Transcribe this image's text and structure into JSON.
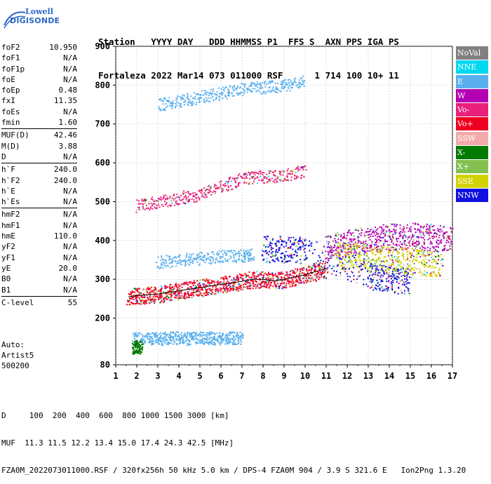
{
  "logo": {
    "line1": "Lowell",
    "line2": "DIGISONDE"
  },
  "header": {
    "line1": "Station   YYYY DAY   DDD HHMMSS P1  FFS S  AXN PPS IGA PS",
    "line2": "Fortaleza 2022 Mar14 073 011000 RSF      1 714 100 10+ 11"
  },
  "params": [
    {
      "group": [
        {
          "name": "foF2",
          "value": "10.950"
        },
        {
          "name": "foF1",
          "value": "N/A"
        },
        {
          "name": "foF1p",
          "value": "N/A"
        },
        {
          "name": "foE",
          "value": "N/A"
        },
        {
          "name": "foEp",
          "value": "0.48"
        },
        {
          "name": "fxI",
          "value": "11.35"
        },
        {
          "name": "foEs",
          "value": "N/A"
        },
        {
          "name": "fmin",
          "value": "1.60"
        }
      ]
    },
    {
      "group": [
        {
          "name": "MUF(D)",
          "value": "42.46"
        },
        {
          "name": "M(D)",
          "value": "3.88"
        },
        {
          "name": "D",
          "value": "N/A"
        }
      ]
    },
    {
      "group": [
        {
          "name": "h`F",
          "value": "240.0"
        },
        {
          "name": "h`F2",
          "value": "240.0"
        },
        {
          "name": "h`E",
          "value": "N/A"
        },
        {
          "name": "h`Es",
          "value": "N/A"
        }
      ]
    },
    {
      "group": [
        {
          "name": "hmF2",
          "value": "N/A"
        },
        {
          "name": "hmF1",
          "value": "N/A"
        },
        {
          "name": "hmE",
          "value": "110.0"
        },
        {
          "name": "yF2",
          "value": "N/A"
        },
        {
          "name": "yF1",
          "value": "N/A"
        },
        {
          "name": "yE",
          "value": "20.0"
        },
        {
          "name": "B0",
          "value": "N/A"
        },
        {
          "name": "B1",
          "value": "N/A"
        }
      ]
    },
    {
      "group": [
        {
          "name": "C-level",
          "value": "55"
        }
      ]
    }
  ],
  "auto": {
    "line1": "Auto:",
    "line2": "Artist5",
    "line3": "500200"
  },
  "legend": [
    {
      "label": "NoVal",
      "color": "#808080"
    },
    {
      "label": "NNE",
      "color": "#00d8f0"
    },
    {
      "label": "E",
      "color": "#5ab0ee"
    },
    {
      "label": "W",
      "color": "#b400b4"
    },
    {
      "label": "Vo-",
      "color": "#e8207c"
    },
    {
      "label": "Vo+",
      "color": "#f00020"
    },
    {
      "label": "SSW",
      "color": "#f4aaaa"
    },
    {
      "label": "X-",
      "color": "#007a00"
    },
    {
      "label": "X+",
      "color": "#84c050"
    },
    {
      "label": "SSE",
      "color": "#d2d200"
    },
    {
      "label": "NNW",
      "color": "#1010e0"
    }
  ],
  "footer": {
    "line1": "D     100  200  400  600  800 1000 1500 3000 [km]",
    "line2": "MUF  11.3 11.5 12.2 13.4 15.0 17.4 24.3 42.5 [MHz]",
    "line3": "FZA0M_2022073011000.RSF / 320fx256h 50 kHz 5.0 km / DPS-4 FZA0M 904 / 3.9 S 321.6 E   Ion2Png 1.3.20"
  },
  "chart_data": {
    "type": "scatter",
    "title": "",
    "xlabel": "",
    "ylabel": "",
    "xlim": [
      1,
      17
    ],
    "ylim": [
      80,
      900
    ],
    "xticks": [
      "1",
      "2",
      "3",
      "4",
      "5",
      "6",
      "7",
      "8",
      "9",
      "10",
      "11",
      "12",
      "13",
      "14",
      "15",
      "16",
      "17"
    ],
    "yticks": [
      "80",
      "200",
      "300",
      "400",
      "500",
      "600",
      "700",
      "800",
      "900"
    ],
    "grid": "dotted",
    "legend_position": "right",
    "series": [
      {
        "name": "Vo+",
        "color": "#f00020",
        "trace": "F-layer",
        "points": [
          [
            1.6,
            255
          ],
          [
            2.0,
            258
          ],
          [
            2.5,
            260
          ],
          [
            3.0,
            262
          ],
          [
            3.5,
            266
          ],
          [
            4.0,
            270
          ],
          [
            4.5,
            275
          ],
          [
            5.0,
            278
          ],
          [
            5.5,
            283
          ],
          [
            6.0,
            287
          ],
          [
            6.5,
            290
          ],
          [
            7.0,
            295
          ],
          [
            7.5,
            300
          ],
          [
            8.0,
            300
          ],
          [
            8.5,
            296
          ],
          [
            9.0,
            300
          ],
          [
            9.5,
            306
          ],
          [
            10.0,
            312
          ],
          [
            10.5,
            320
          ],
          [
            11.0,
            328
          ]
        ]
      },
      {
        "name": "E",
        "color": "#5ab0ee",
        "trace": "low-echo",
        "points": [
          [
            1.8,
            150
          ],
          [
            2.5,
            150
          ],
          [
            3.0,
            148
          ],
          [
            3.5,
            150
          ],
          [
            4.0,
            150
          ],
          [
            4.5,
            148
          ],
          [
            5.0,
            150
          ],
          [
            5.5,
            150
          ],
          [
            6.0,
            148
          ],
          [
            6.5,
            150
          ],
          [
            7.0,
            150
          ]
        ]
      },
      {
        "name": "E",
        "color": "#5ab0ee",
        "trace": "F-oblique",
        "points": [
          [
            3.0,
            345
          ],
          [
            4.0,
            350
          ],
          [
            5.0,
            355
          ],
          [
            6.0,
            360
          ],
          [
            7.0,
            362
          ],
          [
            7.5,
            364
          ]
        ]
      },
      {
        "name": "W",
        "color": "#b400b4",
        "trace": "high-freq",
        "points": [
          [
            11.0,
            385
          ],
          [
            12.0,
            395
          ],
          [
            13.0,
            405
          ],
          [
            14.0,
            410
          ],
          [
            15.0,
            412
          ],
          [
            16.0,
            410
          ],
          [
            17.0,
            400
          ]
        ]
      },
      {
        "name": "SSE",
        "color": "#d2d200",
        "trace": "spread",
        "points": [
          [
            11.5,
            360
          ],
          [
            12.5,
            360
          ],
          [
            13.5,
            355
          ],
          [
            14.5,
            350
          ],
          [
            15.5,
            345
          ],
          [
            16.5,
            340
          ]
        ]
      },
      {
        "name": "NNW",
        "color": "#1010e0",
        "trace": "spread",
        "points": [
          [
            8.0,
            380
          ],
          [
            9.0,
            378
          ],
          [
            10.0,
            375
          ],
          [
            13.0,
            310
          ],
          [
            14.0,
            300
          ],
          [
            15.0,
            295
          ]
        ]
      },
      {
        "name": "Vo-",
        "color": "#e8207c",
        "trace": "second-hop",
        "points": [
          [
            2.0,
            490
          ],
          [
            3.0,
            500
          ],
          [
            4.0,
            510
          ],
          [
            5.0,
            520
          ],
          [
            6.0,
            540
          ],
          [
            7.0,
            560
          ],
          [
            8.0,
            565
          ],
          [
            9.0,
            570
          ],
          [
            10.0,
            580
          ]
        ]
      },
      {
        "name": "E",
        "color": "#5ab0ee",
        "trace": "third-hop",
        "points": [
          [
            3.0,
            750
          ],
          [
            4.0,
            760
          ],
          [
            5.0,
            770
          ],
          [
            6.0,
            780
          ],
          [
            7.0,
            790
          ],
          [
            8.0,
            795
          ],
          [
            9.0,
            800
          ],
          [
            10.0,
            810
          ]
        ]
      },
      {
        "name": "X-",
        "color": "#007a00",
        "trace": "low",
        "points": [
          [
            1.8,
            125
          ],
          [
            2.0,
            128
          ],
          [
            2.2,
            125
          ]
        ]
      }
    ]
  }
}
